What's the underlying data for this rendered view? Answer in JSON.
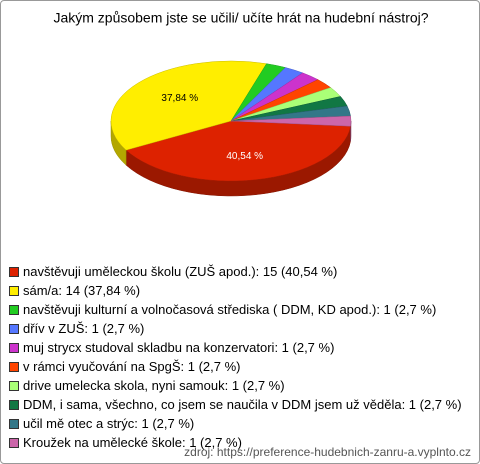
{
  "chart_data": {
    "type": "pie",
    "title": "Jakým způsobem jste se učili/ učíte hrát na hudební nástroj?",
    "categories": [
      "navštěvuji uměleckou školu (ZUŠ apod.): 15 (40,54 %)",
      "sám/a: 14 (37,84 %)",
      "navštěvuji kulturní a volnočasová střediska ( DDM, KD apod.): 1 (2,7 %)",
      "dřív v ZUŠ: 1 (2,7 %)",
      "muj strycx studoval skladbu na konzervatori: 1 (2,7 %)",
      "v rámci vyučování na SpgŠ: 1 (2,7 %)",
      "drive umelecka skola, nyni samouk: 1 (2,7 %)",
      "DDM, i sama, všechno, co jsem se naučila v DDM jsem už věděla: 1 (2,7 %)",
      "učil mě otec a strýc: 1 (2,7 %)",
      "Kroužek na umělecké škole: 1 (2,7 %)"
    ],
    "values": [
      40.54,
      37.84,
      2.7,
      2.7,
      2.7,
      2.7,
      2.7,
      2.7,
      2.7,
      2.7
    ],
    "value_labels": [
      "40,54 %",
      "37,84 %",
      null,
      null,
      null,
      null,
      null,
      null,
      null,
      null
    ],
    "colors": [
      "#dd2200",
      "#ffee00",
      "#22cc22",
      "#5577ff",
      "#cc33cc",
      "#ff4400",
      "#aaff77",
      "#117744",
      "#337788",
      "#cc66aa"
    ],
    "source": "zdroj: https://preference-hudebnich-zanru-a.vyplnto.cz"
  }
}
